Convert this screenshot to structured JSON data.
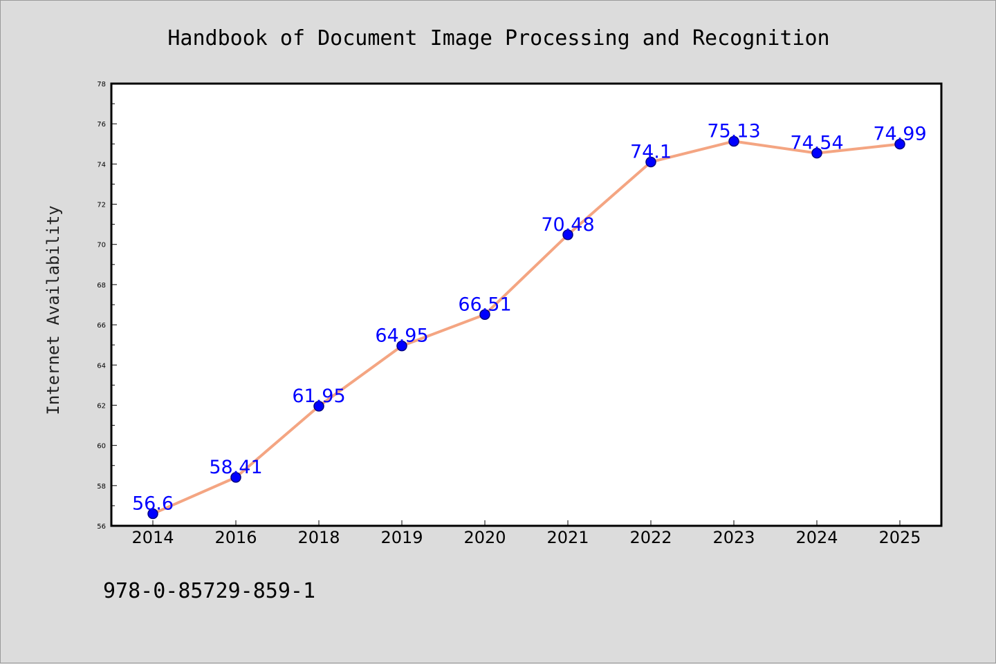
{
  "footer": {
    "isbn": "978-0-85729-859-1"
  },
  "chart_data": {
    "type": "line",
    "title": "Handbook of Document Image Processing and Recognition",
    "xlabel": "",
    "ylabel": "Internet Availability",
    "categories": [
      "2014",
      "2016",
      "2018",
      "2019",
      "2020",
      "2021",
      "2022",
      "2023",
      "2024",
      "2025"
    ],
    "series": [
      {
        "values": [
          56.6,
          58.41,
          61.95,
          64.95,
          66.51,
          70.48,
          74.1,
          75.13,
          74.54,
          74.99
        ],
        "labels": [
          "56.6",
          "58.41",
          "61.95",
          "64.95",
          "66.51",
          "70.48",
          "74.1",
          "75.13",
          "74.54",
          "74.99"
        ]
      }
    ],
    "ylim": [
      56,
      78
    ],
    "yticks": [
      "56",
      "58",
      "60",
      "62",
      "64",
      "66",
      "68",
      "70",
      "72",
      "74",
      "76",
      "78"
    ],
    "grid": false,
    "legend": "none",
    "colors": {
      "line": "#f4a582",
      "marker": "#0000ff",
      "marker_edge": "#000080",
      "label": "#0000ff"
    }
  }
}
